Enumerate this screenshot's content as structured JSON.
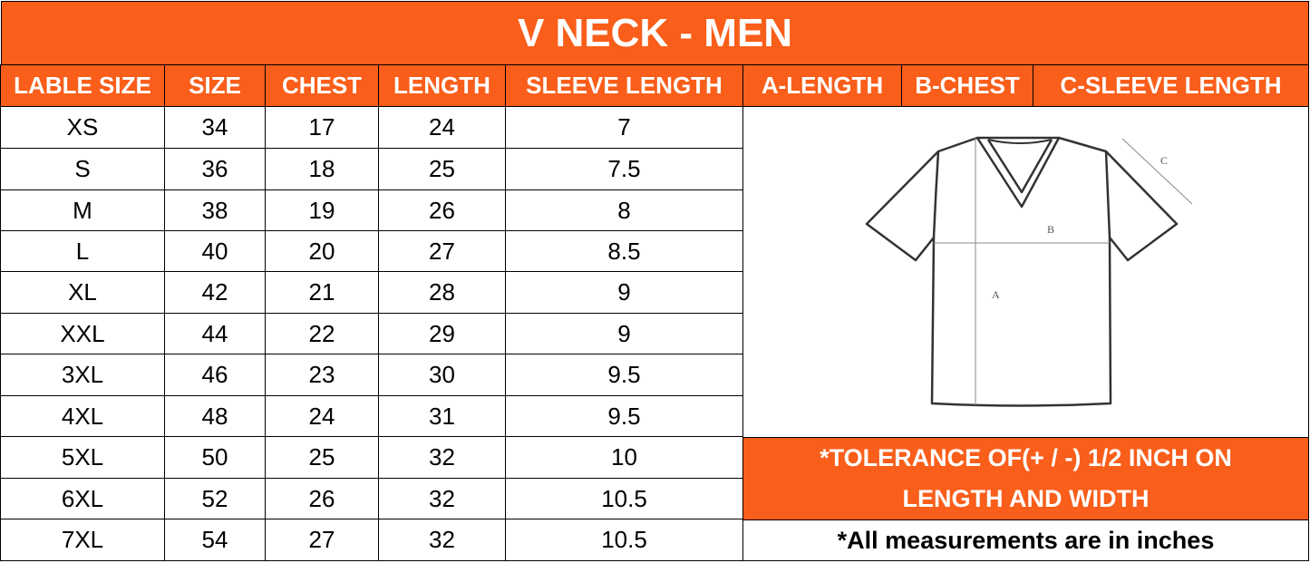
{
  "title": "V NECK - MEN",
  "headers": [
    "LABLE SIZE",
    "SIZE",
    "CHEST",
    "LENGTH",
    "SLEEVE LENGTH"
  ],
  "diagram_headers": [
    "A-LENGTH",
    "B-CHEST",
    "C-SLEEVE LENGTH"
  ],
  "rows": [
    [
      "XS",
      "34",
      "17",
      "24",
      "7"
    ],
    [
      "S",
      "36",
      "18",
      "25",
      "7.5"
    ],
    [
      "M",
      "38",
      "19",
      "26",
      "8"
    ],
    [
      "L",
      "40",
      "20",
      "27",
      "8.5"
    ],
    [
      "XL",
      "42",
      "21",
      "28",
      "9"
    ],
    [
      "XXL",
      "44",
      "22",
      "29",
      "9"
    ],
    [
      "3XL",
      "46",
      "23",
      "30",
      "9.5"
    ],
    [
      "4XL",
      "48",
      "24",
      "31",
      "9.5"
    ],
    [
      "5XL",
      "50",
      "25",
      "32",
      "10"
    ],
    [
      "6XL",
      "52",
      "26",
      "32",
      "10.5"
    ],
    [
      "7XL",
      "54",
      "27",
      "32",
      "10.5"
    ]
  ],
  "diagram_labels": {
    "a": "A",
    "b": "B",
    "c": "C"
  },
  "tolerance_line1": "*TOLERANCE OF(+ / -) 1/2 INCH ON",
  "tolerance_line2": "LENGTH AND WIDTH",
  "units_note": "*All measurements are in inches",
  "colors": {
    "accent": "#F95E1A",
    "text_on_accent": "#FFFFFF",
    "border": "#000000"
  }
}
